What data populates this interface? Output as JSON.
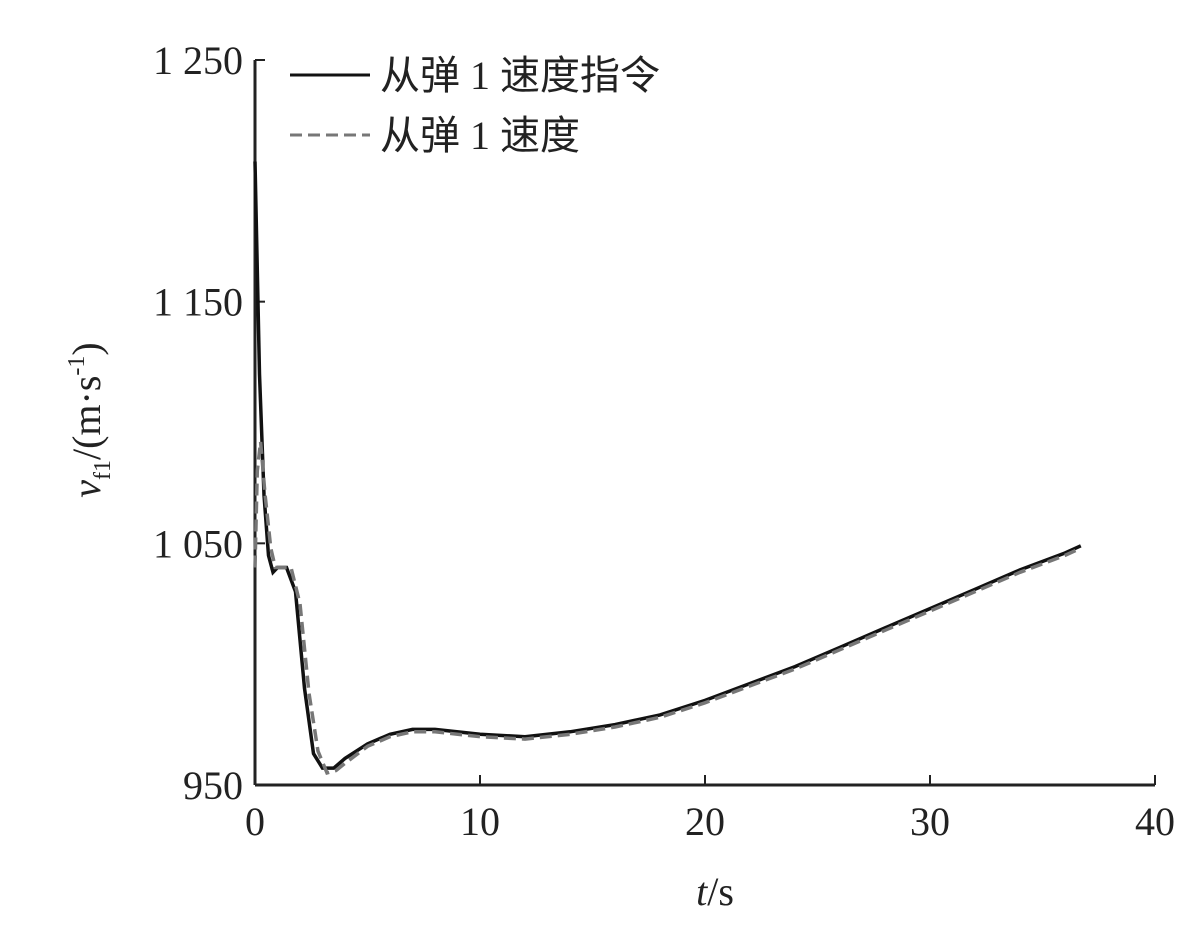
{
  "chart_data": {
    "type": "line",
    "xlabel": {
      "symbol": "t",
      "unit": "/s"
    },
    "ylabel": {
      "symbol": "v",
      "subscript": "f1",
      "unit": "/(m·s",
      "superscript": "-1",
      "close": ")"
    },
    "xlim": [
      0,
      40
    ],
    "xticks": [
      0,
      10,
      20,
      30,
      40
    ],
    "ylim": [
      950,
      1250
    ],
    "yticks": [
      950,
      {
        "value": 1050,
        "label": "1 050"
      },
      {
        "value": 1150,
        "label": "1 150"
      },
      {
        "value": 1250,
        "label": "1 250"
      }
    ],
    "legend": "upper left",
    "series": [
      {
        "name": "从弹 1 速度指令",
        "color": "#111111",
        "dash": false,
        "x": [
          0,
          0.2,
          0.4,
          0.6,
          0.8,
          1.0,
          1.4,
          1.8,
          2.2,
          2.6,
          3.0,
          3.5,
          4,
          5,
          6,
          7,
          8,
          10,
          12,
          14,
          16,
          18,
          20,
          22,
          24,
          26,
          28,
          30,
          32,
          34,
          36,
          36.7
        ],
        "values": [
          1208,
          1120,
          1070,
          1045,
          1038,
          1040,
          1040,
          1030,
          990,
          963,
          957,
          957,
          961,
          967,
          971,
          973,
          973,
          971,
          970,
          972,
          975,
          979,
          985,
          992,
          999,
          1007,
          1015,
          1023,
          1031,
          1039,
          1046,
          1049
        ]
      },
      {
        "name": "从弹 1 速度",
        "color": "#777777",
        "dash": true,
        "x": [
          0,
          0.1,
          0.25,
          0.45,
          0.7,
          0.9,
          1.2,
          1.6,
          2.0,
          2.4,
          2.8,
          3.2,
          3.6,
          4,
          5,
          6,
          7,
          8,
          10,
          12,
          14,
          16,
          18,
          20,
          22,
          24,
          26,
          28,
          30,
          32,
          34,
          36,
          36.7
        ],
        "values": [
          1040,
          1080,
          1092,
          1070,
          1048,
          1040,
          1040,
          1040,
          1025,
          988,
          964,
          955,
          956,
          959,
          966,
          970,
          972,
          972,
          970,
          969,
          971,
          974,
          978,
          984,
          991,
          998,
          1006,
          1014,
          1022,
          1030,
          1038,
          1045,
          1048
        ]
      }
    ]
  }
}
